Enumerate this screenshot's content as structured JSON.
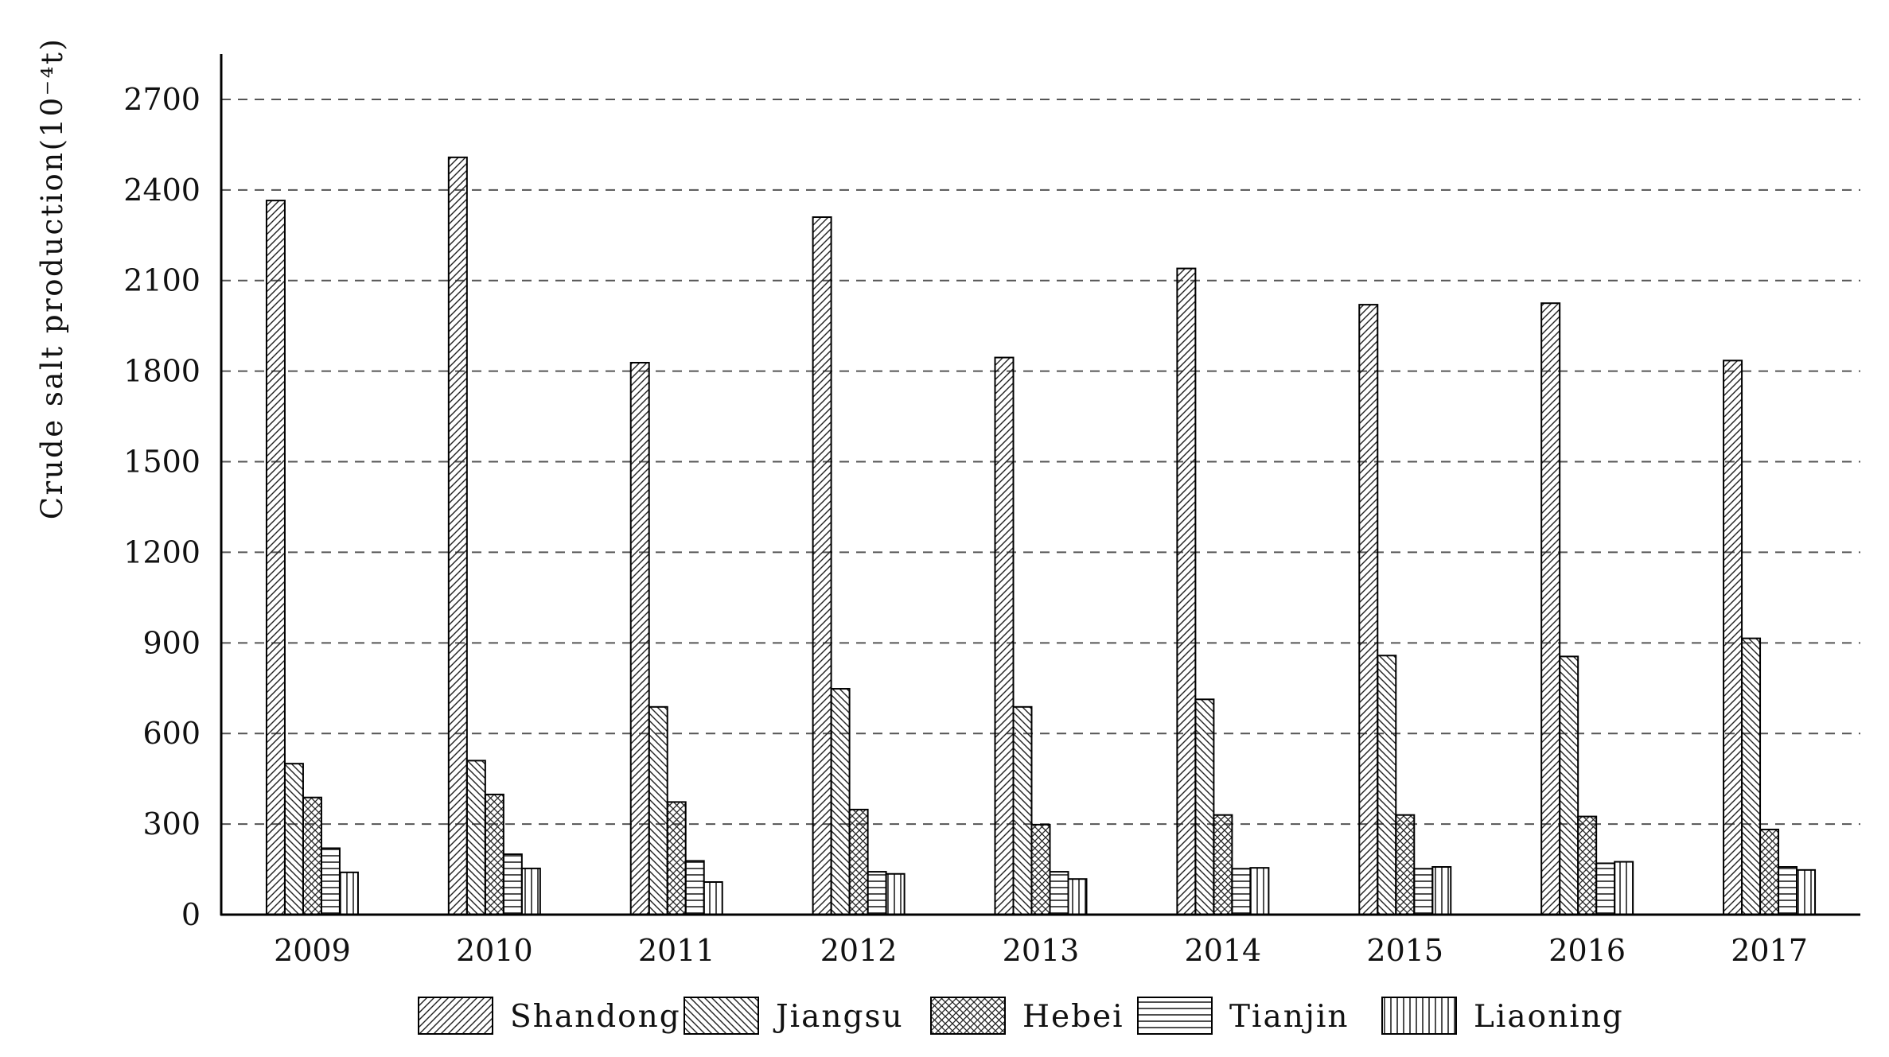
{
  "chart_data": {
    "type": "bar",
    "title": "",
    "ylabel": "Crude salt production(10⁻⁴t)",
    "xlabel": "",
    "categories": [
      "2009",
      "2010",
      "2011",
      "2012",
      "2013",
      "2014",
      "2015",
      "2016",
      "2017"
    ],
    "y_ticks": [
      "0",
      "300",
      "600",
      "900",
      "1200",
      "1500",
      "1800",
      "2100",
      "2400",
      "2700"
    ],
    "ylim": [
      0,
      2850
    ],
    "grid": "horizontal-dashed",
    "legend_position": "bottom",
    "series": [
      {
        "name": "Shandong",
        "pattern": "forward-diagonal",
        "values": [
          2365,
          2508,
          1828,
          2310,
          1845,
          2140,
          2020,
          2025,
          1835
        ]
      },
      {
        "name": "Jiangsu",
        "pattern": "back-diagonal",
        "values": [
          500,
          510,
          688,
          748,
          688,
          713,
          858,
          855,
          915
        ]
      },
      {
        "name": "Hebei",
        "pattern": "crosshatch",
        "values": [
          388,
          398,
          373,
          348,
          298,
          330,
          330,
          325,
          282
        ]
      },
      {
        "name": "Tianjin",
        "pattern": "horizontal",
        "values": [
          220,
          200,
          178,
          142,
          142,
          152,
          152,
          170,
          158
        ]
      },
      {
        "name": "Liaoning",
        "pattern": "vertical",
        "values": [
          140,
          153,
          108,
          135,
          118,
          155,
          158,
          175,
          148
        ]
      }
    ]
  }
}
